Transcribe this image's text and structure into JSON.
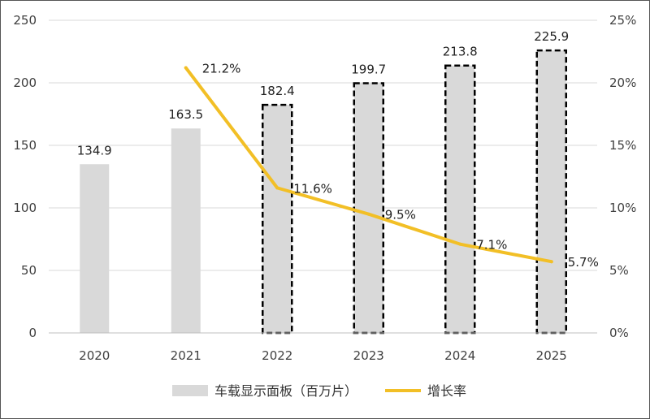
{
  "chart_data": {
    "type": "bar",
    "categories": [
      "2020",
      "2021",
      "2022",
      "2023",
      "2024",
      "2025"
    ],
    "series": [
      {
        "name": "车载显示面板（百万片）",
        "type": "bar",
        "axis": "left",
        "values": [
          134.9,
          163.5,
          182.4,
          199.7,
          213.8,
          225.9
        ],
        "value_labels": [
          "134.9",
          "163.5",
          "182.4",
          "199.7",
          "213.8",
          "225.9"
        ],
        "forecast": [
          false,
          false,
          true,
          true,
          true,
          true
        ]
      },
      {
        "name": "增长率",
        "type": "line",
        "axis": "right",
        "values": [
          null,
          21.2,
          11.6,
          9.5,
          7.1,
          5.7
        ],
        "value_labels": [
          "",
          "21.2%",
          "11.6%",
          "9.5%",
          "7.1%",
          "5.7%"
        ]
      }
    ],
    "y_left": {
      "ylim": [
        0,
        250
      ],
      "ticks": [
        "0",
        "50",
        "100",
        "150",
        "200",
        "250"
      ]
    },
    "y_right": {
      "ylim": [
        0,
        25
      ],
      "ticks": [
        "0%",
        "5%",
        "10%",
        "15%",
        "20%",
        "25%"
      ]
    },
    "legend_position": "bottom",
    "grid": true,
    "colors": {
      "bar": "#d9d9d9",
      "forecast_border": "#000000",
      "line": "#f2bf26",
      "grid": "#d9d9d9"
    }
  }
}
